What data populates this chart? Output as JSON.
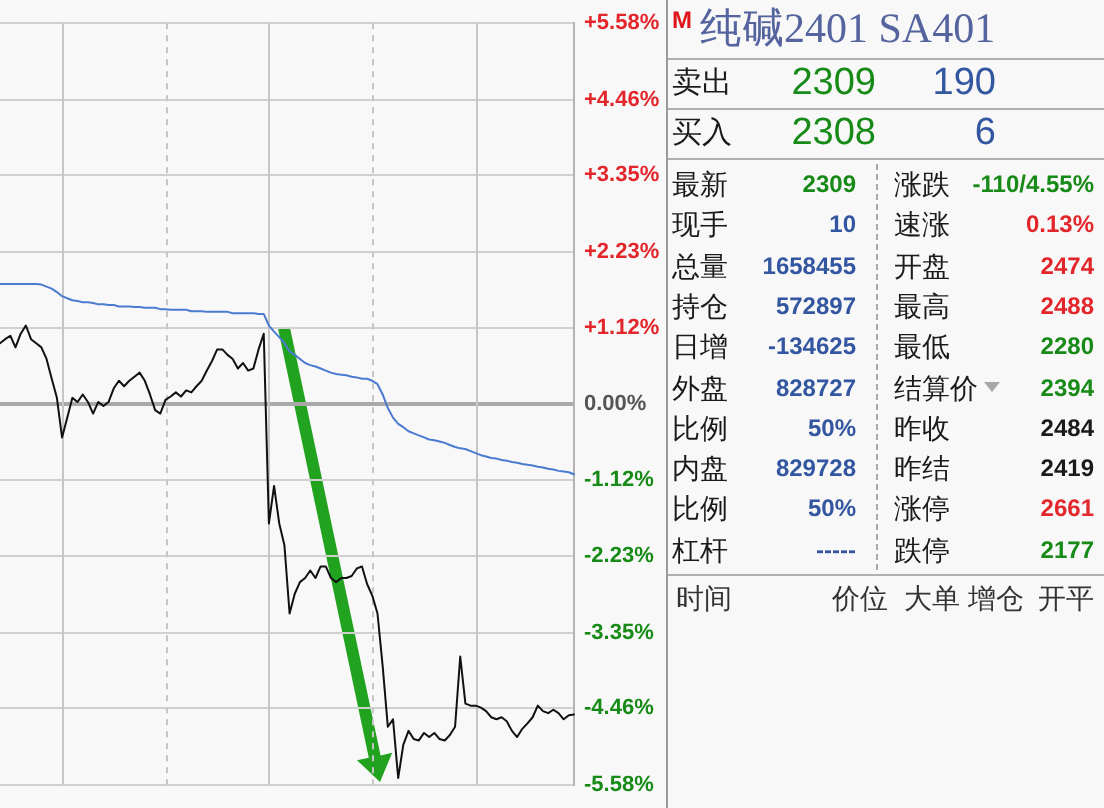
{
  "chart_data": [
    {
      "type": "line",
      "categories": [
        null,
        null,
        null,
        null,
        null,
        null,
        null,
        null,
        null,
        null,
        null,
        null,
        null,
        null,
        null,
        null,
        null,
        null,
        null,
        null,
        null,
        null,
        null,
        null,
        null,
        null,
        null,
        null,
        null,
        null,
        null,
        null,
        null,
        null,
        null,
        null,
        null,
        null,
        null,
        null,
        null,
        null,
        null,
        null,
        null,
        null,
        null,
        null,
        null,
        null,
        null,
        null,
        null,
        null,
        null,
        null,
        null,
        null,
        null,
        null,
        null,
        null,
        null,
        null,
        null,
        null,
        null,
        null,
        null,
        null,
        null,
        null,
        null,
        null,
        null,
        null,
        null,
        null,
        null,
        null,
        null,
        null,
        null,
        null,
        null,
        null,
        null,
        null,
        null,
        null,
        null,
        null,
        null,
        null,
        null,
        null,
        null,
        null,
        null,
        null,
        null,
        null,
        null,
        null,
        null,
        null,
        null,
        null,
        null,
        null,
        null,
        null
      ],
      "series": [
        {
          "color": "#111111",
          "values": [
            0.89,
            0.95,
            1.0,
            0.83,
            1.03,
            1.15,
            0.95,
            0.89,
            0.83,
            0.66,
            0.37,
            0.09,
            -0.49,
            -0.2,
            0.09,
            0.03,
            0.14,
            0.03,
            -0.14,
            0.03,
            -0.03,
            0.03,
            0.23,
            0.34,
            0.26,
            0.34,
            0.4,
            0.46,
            0.34,
            0.14,
            -0.09,
            -0.14,
            0.06,
            0.11,
            0.17,
            0.11,
            0.2,
            0.17,
            0.26,
            0.34,
            0.49,
            0.63,
            0.8,
            0.8,
            0.72,
            0.66,
            0.52,
            0.6,
            0.49,
            0.52,
            0.8,
            1.03,
            -1.75,
            -1.2,
            -1.75,
            -2.07,
            -3.07,
            -2.78,
            -2.61,
            -2.55,
            -2.44,
            -2.55,
            -2.38,
            -2.38,
            -2.55,
            -2.61,
            -2.55,
            -2.55,
            -2.52,
            -2.41,
            -2.38,
            -2.64,
            -2.81,
            -3.07,
            -3.84,
            -4.73,
            -4.62,
            -5.48,
            -4.99,
            -4.79,
            -4.91,
            -4.93,
            -4.82,
            -4.88,
            -4.82,
            -4.91,
            -4.93,
            -4.85,
            -4.73,
            -3.7,
            -4.39,
            -4.42,
            -4.42,
            -4.45,
            -4.5,
            -4.59,
            -4.62,
            -4.59,
            -4.65,
            -4.79,
            -4.88,
            -4.76,
            -4.68,
            -4.59,
            -4.42,
            -4.5,
            -4.53,
            -4.48,
            -4.53,
            -4.62,
            -4.56,
            -4.55
          ]
        },
        {
          "color": "#4a7bd0",
          "values": [
            1.76,
            1.76,
            1.76,
            1.76,
            1.76,
            1.76,
            1.76,
            1.76,
            1.75,
            1.72,
            1.69,
            1.64,
            1.58,
            1.55,
            1.52,
            1.51,
            1.49,
            1.49,
            1.48,
            1.46,
            1.46,
            1.45,
            1.45,
            1.43,
            1.43,
            1.43,
            1.42,
            1.42,
            1.41,
            1.41,
            1.41,
            1.39,
            1.39,
            1.38,
            1.38,
            1.38,
            1.38,
            1.36,
            1.36,
            1.36,
            1.35,
            1.35,
            1.35,
            1.35,
            1.35,
            1.33,
            1.33,
            1.33,
            1.33,
            1.33,
            1.32,
            1.32,
            1.15,
            1.06,
            0.98,
            0.89,
            0.77,
            0.72,
            0.66,
            0.6,
            0.57,
            0.55,
            0.52,
            0.49,
            0.46,
            0.44,
            0.43,
            0.42,
            0.4,
            0.39,
            0.37,
            0.37,
            0.34,
            0.29,
            0.14,
            -0.06,
            -0.2,
            -0.29,
            -0.34,
            -0.4,
            -0.43,
            -0.46,
            -0.49,
            -0.52,
            -0.53,
            -0.55,
            -0.57,
            -0.6,
            -0.63,
            -0.65,
            -0.66,
            -0.69,
            -0.72,
            -0.75,
            -0.77,
            -0.79,
            -0.8,
            -0.82,
            -0.83,
            -0.85,
            -0.86,
            -0.88,
            -0.89,
            -0.9,
            -0.92,
            -0.93,
            -0.95,
            -0.96,
            -0.98,
            -0.99,
            -1.0,
            -1.03
          ]
        }
      ],
      "ylim": [
        -5.58,
        5.58
      ],
      "yticks": [
        {
          "value": 5.58,
          "label": "+5.58%"
        },
        {
          "value": 4.46,
          "label": "+4.46%"
        },
        {
          "value": 3.35,
          "label": "+3.35%"
        },
        {
          "value": 2.23,
          "label": "+2.23%"
        },
        {
          "value": 1.12,
          "label": "+1.12%"
        },
        {
          "value": 0,
          "label": "0.00%"
        },
        {
          "value": -1.12,
          "label": "-1.12%"
        },
        {
          "value": -2.23,
          "label": "-2.23%"
        },
        {
          "value": -3.35,
          "label": "-3.35%"
        },
        {
          "value": -4.46,
          "label": "-4.46%"
        },
        {
          "value": -5.58,
          "label": "-5.58%"
        }
      ],
      "grid": true,
      "tick_labels": "y",
      "marker": "none"
    },
    {
      "type": "other",
      "title": "纯碱2401 SA401",
      "annotations": [
        "M",
        "卖出",
        "2309",
        "190",
        "买入",
        "2308",
        "6",
        "最新",
        "2309",
        "涨跌",
        "-110/4.55%",
        "现手",
        "10",
        "速涨",
        "0.13%",
        "总量",
        "1658455",
        "开盘",
        "2474",
        "持仓",
        "572897",
        "最高",
        "2488",
        "日增",
        "-134625",
        "最低",
        "2280",
        "外盘",
        "828727",
        "结算价",
        "2394",
        "比例",
        "50%",
        "昨收",
        "2484",
        "内盘",
        "829728",
        "昨结",
        "2419",
        "比例",
        "50%",
        "涨停",
        "2661",
        "杠杆",
        "-----",
        "跌停",
        "2177",
        "时间",
        "价位",
        "大单",
        "增仓",
        "开平"
      ]
    }
  ]
}
